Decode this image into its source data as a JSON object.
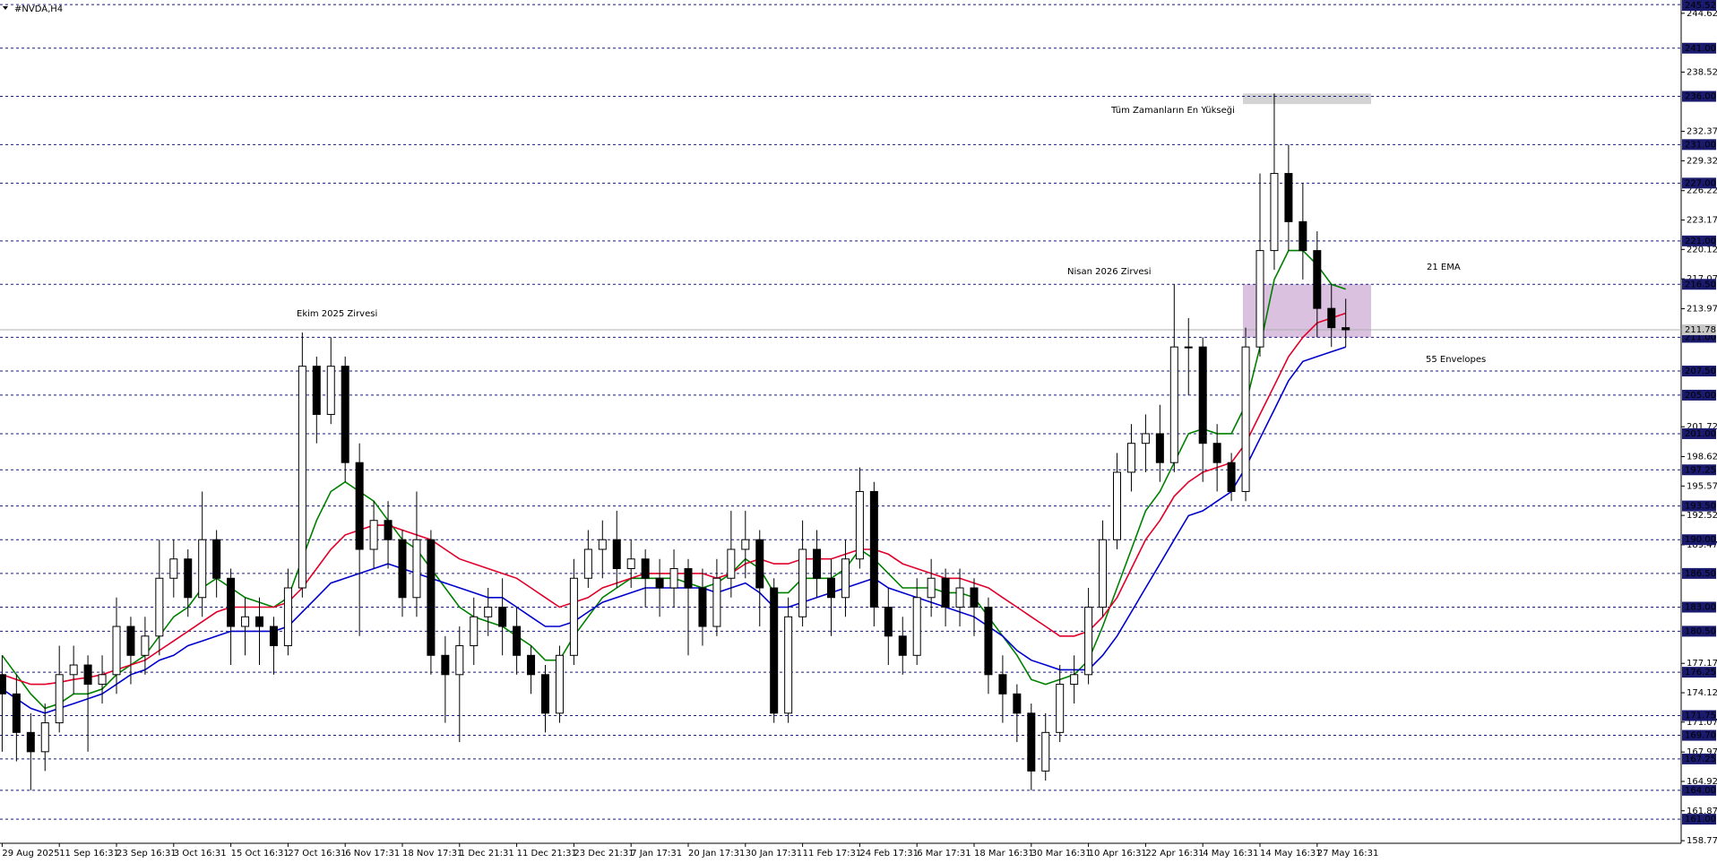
{
  "chart_data": {
    "type": "candlestick",
    "symbol": "#NVDA,H4",
    "categories": [
      "29 Aug 2025",
      null,
      null,
      null,
      "11 Sep 16:31",
      null,
      null,
      null,
      "23 Sep 16:31",
      null,
      null,
      null,
      "3 Oct 16:31",
      null,
      null,
      null,
      "15 Oct 16:31",
      null,
      null,
      null,
      "27 Oct 16:31",
      null,
      null,
      null,
      "6 Nov 17:31",
      null,
      null,
      null,
      "18 Nov 17:31",
      null,
      null,
      null,
      "1 Dec 21:31",
      null,
      null,
      null,
      "11 Dec 21:31",
      null,
      null,
      null,
      "23 Dec 21:31",
      null,
      null,
      null,
      "7 Jan 17:31",
      null,
      null,
      null,
      "20 Jan 17:31",
      null,
      null,
      null,
      "30 Jan 17:31",
      null,
      null,
      null,
      "11 Feb 17:31",
      null,
      null,
      null,
      "24 Feb 17:31",
      null,
      null,
      null,
      "6 Mar 17:31",
      null,
      null,
      null,
      "18 Mar 16:31",
      null,
      null,
      null,
      "30 Mar 16:31",
      null,
      null,
      null,
      "10 Apr 16:31",
      null,
      null,
      null,
      "22 Apr 16:31",
      null,
      null,
      null,
      "4 May 16:31",
      null,
      null,
      null,
      "14 May 16:31",
      null,
      null,
      null,
      "27 May 16:31",
      null,
      null
    ],
    "ohlc": {
      "open": [
        176,
        174,
        170,
        168,
        171,
        176,
        177,
        175,
        176,
        181,
        178,
        180,
        186,
        188,
        184,
        190,
        186,
        181,
        182,
        181,
        179,
        185,
        208,
        203,
        208,
        198,
        189,
        192,
        190,
        184,
        190,
        178,
        176,
        179,
        182,
        183,
        181,
        178,
        176,
        172,
        178,
        186,
        189,
        190,
        187,
        188,
        186,
        185,
        187,
        185,
        181,
        186,
        189,
        190,
        185,
        172,
        182,
        189,
        186,
        184,
        188,
        195,
        183,
        180,
        178,
        184,
        186,
        183,
        185,
        183,
        176,
        174,
        172,
        166,
        170,
        175,
        176,
        183,
        190,
        197,
        200,
        201,
        198,
        210,
        210,
        200,
        198,
        195,
        210,
        220,
        228,
        223,
        220,
        214,
        212
      ],
      "high": [
        178,
        176,
        172,
        173,
        179,
        179,
        178,
        178,
        184,
        182,
        182,
        190,
        190,
        189,
        195,
        191,
        187,
        184,
        184,
        182,
        187,
        211.5,
        209,
        211,
        209,
        200,
        194,
        194,
        191,
        195,
        191,
        180,
        181,
        184,
        185,
        186,
        183,
        179,
        177,
        179,
        188,
        191,
        192,
        193,
        190,
        189,
        188,
        189,
        188,
        187,
        188,
        193,
        193,
        191,
        186,
        184,
        192,
        191,
        188,
        190,
        197.5,
        196,
        185,
        182,
        186,
        188,
        187,
        187,
        186,
        184,
        178,
        175,
        173,
        172,
        177,
        178,
        185,
        192,
        199,
        202,
        203,
        204,
        216.5,
        213,
        211,
        202,
        199,
        212,
        228,
        236.3,
        231,
        227,
        222,
        216.5,
        215
      ],
      "low": [
        168,
        167,
        164,
        166,
        170,
        174,
        168,
        173,
        174,
        175,
        176,
        178,
        184,
        182,
        182,
        184,
        177,
        178,
        177,
        176,
        178,
        184,
        200,
        202,
        196,
        180,
        187,
        187,
        182,
        182,
        176,
        171,
        169,
        177,
        180,
        178,
        176,
        174,
        170,
        171,
        177,
        185,
        186,
        185,
        185,
        183,
        182,
        183,
        178,
        179,
        180,
        184,
        186,
        181,
        171,
        171,
        181,
        184,
        180,
        182,
        187,
        181,
        177,
        176,
        177,
        182,
        181,
        181,
        180,
        174,
        171,
        169,
        164,
        165,
        169,
        173,
        175,
        182,
        189,
        195,
        197,
        196,
        197,
        205,
        196,
        195,
        194,
        194,
        209,
        218,
        220,
        217,
        211,
        210,
        210
      ],
      "close": [
        174,
        170,
        168,
        171,
        176,
        177,
        175,
        176,
        181,
        178,
        180,
        186,
        188,
        184,
        190,
        186,
        181,
        182,
        181,
        179,
        185,
        208,
        203,
        208,
        198,
        189,
        192,
        190,
        184,
        190,
        178,
        176,
        179,
        182,
        183,
        181,
        178,
        176,
        172,
        178,
        186,
        189,
        190,
        187,
        188,
        186,
        185,
        187,
        185,
        181,
        186,
        189,
        190,
        185,
        172,
        182,
        189,
        186,
        184,
        188,
        195,
        183,
        180,
        178,
        184,
        186,
        183,
        185,
        183,
        176,
        174,
        172,
        166,
        170,
        175,
        176,
        183,
        190,
        197,
        200,
        201,
        198,
        210,
        210,
        200,
        198,
        195,
        210,
        220,
        228,
        223,
        220,
        214,
        212,
        211.78
      ]
    },
    "lines": [
      {
        "name": "21 EMA",
        "color": "#008000",
        "values": [
          178,
          176,
          174,
          172.5,
          173,
          174,
          174,
          174.5,
          176,
          177,
          178,
          180,
          182,
          183,
          185,
          186,
          185,
          184,
          183.5,
          183,
          184,
          188,
          192,
          195,
          196,
          195,
          194,
          192,
          190,
          189,
          187,
          185,
          183,
          182,
          181.5,
          181,
          180,
          179,
          177.5,
          177.5,
          180,
          182,
          184,
          185,
          186,
          186,
          186,
          186,
          185.5,
          185,
          185.5,
          186.5,
          188,
          187,
          184.5,
          184.5,
          186,
          186,
          186,
          187,
          189,
          188,
          186.5,
          185,
          185,
          185,
          184.5,
          184.5,
          184,
          182,
          180,
          178,
          175.5,
          175,
          175.5,
          176,
          177.5,
          181,
          185,
          189,
          193,
          195,
          198,
          201,
          201.5,
          201,
          201,
          204,
          210,
          217,
          220,
          220,
          218.5,
          216.5,
          216
        ]
      },
      {
        "color": "#e0002a",
        "values": [
          176,
          175.5,
          175,
          175,
          175.2,
          175.5,
          175.7,
          176,
          176.5,
          177,
          177.5,
          178.5,
          179.5,
          180.5,
          181.5,
          182.5,
          183,
          183,
          183,
          183,
          183.5,
          185,
          187,
          189,
          190.5,
          191,
          191.5,
          191.5,
          191,
          190.5,
          190,
          189,
          188,
          187.5,
          187,
          186.5,
          186,
          185,
          184,
          183,
          183.5,
          184,
          185,
          185.5,
          186,
          186.5,
          186.5,
          186.5,
          186.5,
          186.5,
          186,
          186.5,
          187.5,
          188,
          187.5,
          187.5,
          188,
          188,
          188,
          188.5,
          189,
          189,
          188.5,
          187.5,
          187,
          186.5,
          186,
          186,
          185.5,
          185,
          184,
          183,
          182,
          181,
          180,
          180,
          180.5,
          182,
          184,
          187,
          190,
          192,
          194.5,
          196,
          197,
          197.5,
          198,
          200,
          203,
          206,
          209,
          211,
          212.5,
          213,
          213.5
        ]
      },
      {
        "name": "55 Envelopes",
        "color": "#0000cc",
        "values": [
          174.5,
          173.5,
          172.5,
          172,
          172.5,
          173,
          173.5,
          174,
          175,
          176,
          176.5,
          177.5,
          178,
          179,
          179.5,
          180,
          180.5,
          180.5,
          180.5,
          180.5,
          181,
          182.5,
          184,
          185.5,
          186,
          186.5,
          187,
          187.5,
          187,
          186.5,
          186,
          185.5,
          185,
          184.5,
          184,
          184,
          183,
          182,
          181,
          181,
          181.5,
          182.5,
          183.5,
          184,
          184.5,
          185,
          185,
          185,
          185,
          185,
          184.5,
          185,
          185.5,
          184.5,
          183,
          183,
          183.5,
          184,
          184.5,
          185,
          185.5,
          186,
          185,
          184.5,
          184,
          183.5,
          183,
          182.5,
          182,
          181,
          180,
          178.5,
          177.5,
          177,
          176.5,
          176.5,
          176.5,
          178,
          180,
          182.5,
          185,
          187.5,
          190,
          192.5,
          193,
          194,
          195,
          197.5,
          200.5,
          203.5,
          206.5,
          208.5,
          209,
          209.5,
          210
        ]
      }
    ],
    "ylim": [
      158.5,
      246
    ],
    "yticks": [
      244.62,
      238.52,
      232.37,
      229.32,
      226.22,
      223.17,
      220.12,
      217.07,
      213.97,
      201.72,
      198.62,
      195.57,
      192.52,
      189.47,
      177.17,
      174.12,
      171.07,
      167.97,
      164.92,
      161.87,
      158.77
    ],
    "levels": [
      245.52,
      {
        "value": 241,
        "label": "241.00"
      },
      {
        "value": 236,
        "label": "236.00"
      },
      {
        "value": 231,
        "label": "231.00"
      },
      {
        "value": 227,
        "label": "227.00"
      },
      {
        "value": 221,
        "label": "221.00"
      },
      {
        "value": 216.5,
        "label": "216.50"
      },
      {
        "value": 211,
        "label": "211.00"
      },
      {
        "value": 207.5,
        "label": "207.50"
      },
      {
        "value": 205,
        "label": "205.00"
      },
      {
        "value": 201,
        "label": "201.00"
      },
      197.25,
      {
        "value": 193.5,
        "label": "193.50"
      },
      {
        "value": 190,
        "label": "190.00"
      },
      {
        "value": 186.5,
        "label": "186.50"
      },
      {
        "value": 183,
        "label": "183.00"
      },
      {
        "value": 180.5,
        "label": "180.50"
      },
      176.25,
      171.75,
      {
        "value": 169.7,
        "label": "169.70"
      },
      167.25,
      {
        "value": 164,
        "label": "164.00"
      },
      {
        "value": 161,
        "label": "161.00"
      }
    ],
    "current_price": 211.78,
    "zones": [
      {
        "range": [
          235.2,
          236.3
        ],
        "color": "#d3d3d3"
      },
      {
        "range": [
          211,
          216.5
        ],
        "color": "#d9c1df"
      }
    ],
    "annotations": [
      "Ekim 2025 Zirvesi",
      "Nisan 2026 Zirvesi",
      "Tüm Zamanların En Yükseği"
    ]
  }
}
